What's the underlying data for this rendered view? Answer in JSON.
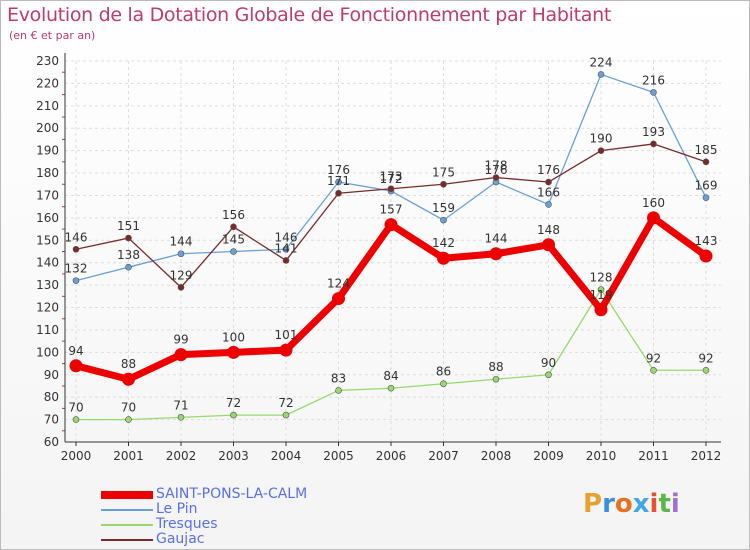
{
  "header": {
    "title": "Evolution de la Dotation Globale de Fonctionnement par Habitant",
    "subtitle": "(en € et par an)"
  },
  "logo": {
    "text": "Proxiti",
    "colors": [
      "#e8a030",
      "#3a8ee0",
      "#e87020",
      "#40a8e8",
      "#e85030",
      "#58b848",
      "#a070d0"
    ]
  },
  "chart_data": {
    "type": "line",
    "title": "Evolution de la Dotation Globale de Fonctionnement par Habitant",
    "subtitle": "(en € et par an)",
    "xlabel": "",
    "ylabel": "",
    "ylim": [
      60,
      230
    ],
    "yticks": [
      60,
      70,
      80,
      90,
      100,
      110,
      120,
      130,
      140,
      150,
      160,
      170,
      180,
      190,
      200,
      210,
      220,
      230
    ],
    "x": [
      "2000",
      "2001",
      "2002",
      "2003",
      "2004",
      "2005",
      "2006",
      "2007",
      "2008",
      "2009",
      "2010",
      "2011",
      "2012"
    ],
    "grid": true,
    "legend_position": "bottom-left",
    "series": [
      {
        "name": "SAINT-PONS-LA-CALM",
        "color": "#ee0000",
        "values": [
          94,
          88,
          99,
          100,
          101,
          124,
          157,
          142,
          144,
          148,
          119,
          160,
          143
        ],
        "labels": [
          "94",
          "88",
          "99",
          "100",
          "101",
          "124",
          "157",
          "142",
          "144",
          "148",
          "119",
          "160",
          "143"
        ]
      },
      {
        "name": "Le Pin",
        "color": "#6aa0d8",
        "values": [
          132,
          138,
          144,
          145,
          146,
          176,
          172,
          159,
          176,
          166,
          224,
          216,
          169
        ],
        "labels": [
          "132",
          "138",
          "144",
          "145",
          "146",
          "176",
          "172",
          "159",
          "176",
          "166",
          "224",
          "216",
          "169"
        ]
      },
      {
        "name": "Tresques",
        "color": "#98d870",
        "values": [
          70,
          70,
          71,
          72,
          72,
          83,
          84,
          86,
          88,
          90,
          128,
          92,
          92
        ],
        "labels": [
          "70",
          "70",
          "71",
          "72",
          "72",
          "83",
          "84",
          "86",
          "88",
          "90",
          "128",
          "92",
          "92"
        ]
      },
      {
        "name": "Gaujac",
        "color": "#7a2a2a",
        "values": [
          146,
          151,
          129,
          156,
          141,
          171,
          173,
          175,
          178,
          176,
          190,
          193,
          185
        ],
        "labels": [
          "146",
          "151",
          "129",
          "156",
          "141",
          "171",
          "173",
          "175",
          "178",
          "176",
          "190",
          "193",
          "185"
        ]
      }
    ]
  }
}
